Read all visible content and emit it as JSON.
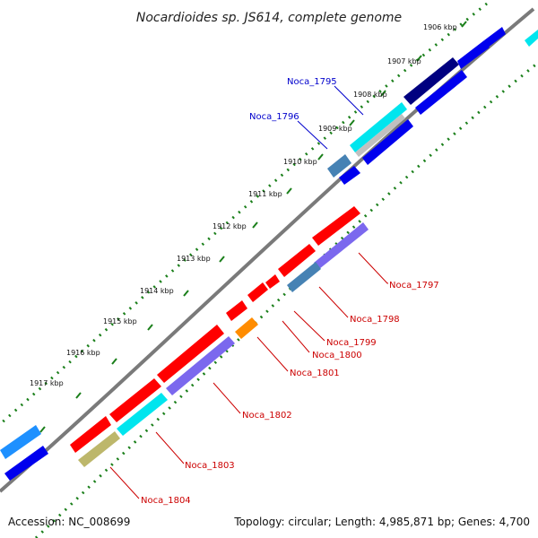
{
  "title": "Nocardioides sp. JS614, complete genome",
  "accession": "Accession: NC_008699",
  "topology": "Topology: circular; Length: 4,985,871 bp; Genes: 4,700",
  "colors": {
    "backbone": "#808080",
    "tick": "#1a7f1a",
    "forward_gene": "#ff0000",
    "reverse_gene": "#0000ff",
    "label_blue": "#0000cc",
    "label_red": "#cc0000"
  },
  "kbp_ticks": [
    {
      "label": "1906 kbp"
    },
    {
      "label": "1907 kbp"
    },
    {
      "label": "1908 kbp"
    },
    {
      "label": "1909 kbp"
    },
    {
      "label": "1910 kbp"
    },
    {
      "label": "1911 kbp"
    },
    {
      "label": "1912 kbp"
    },
    {
      "label": "1913 kbp"
    },
    {
      "label": "1914 kbp"
    },
    {
      "label": "1915 kbp"
    },
    {
      "label": "1916 kbp"
    },
    {
      "label": "1917 kbp"
    }
  ],
  "gene_labels": [
    {
      "name": "Noca_1795",
      "color": "#0000cc"
    },
    {
      "name": "Noca_1796",
      "color": "#0000cc"
    },
    {
      "name": "Noca_1797",
      "color": "#cc0000"
    },
    {
      "name": "Noca_1798",
      "color": "#cc0000"
    },
    {
      "name": "Noca_1799",
      "color": "#cc0000"
    },
    {
      "name": "Noca_1800",
      "color": "#cc0000"
    },
    {
      "name": "Noca_1801",
      "color": "#cc0000"
    },
    {
      "name": "Noca_1802",
      "color": "#cc0000"
    },
    {
      "name": "Noca_1803",
      "color": "#cc0000"
    },
    {
      "name": "Noca_1804",
      "color": "#cc0000"
    }
  ]
}
